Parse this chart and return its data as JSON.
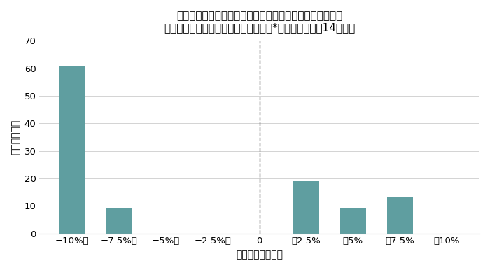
{
  "title_line1": "当社の取り扱った長期仕組預金（デイカウント型預金）の",
  "title_line2": "リスク・リターンの実績（新興国通貨*参照、未償還、14銘柄）",
  "categories": [
    "−10%～",
    "−7.5%～",
    "−5%～",
    "−2.5%～",
    "0",
    "～2.5%",
    "～5%",
    "～7.5%",
    "～10%"
  ],
  "values": [
    61,
    9,
    0,
    0,
    0,
    19,
    9,
    13,
    0
  ],
  "dashed_line_index": 4,
  "bar_color": "#5f9ea0",
  "background_color": "#ffffff",
  "ylabel_chars": [
    "本",
    "数",
    "（",
    "回",
    "数",
    "）"
  ],
  "xlabel": "トータルリターン",
  "ylim": [
    0,
    70
  ],
  "yticks": [
    0,
    10,
    20,
    30,
    40,
    50,
    60,
    70
  ],
  "title_fontsize": 11,
  "axis_fontsize": 10,
  "tick_fontsize": 9.5
}
